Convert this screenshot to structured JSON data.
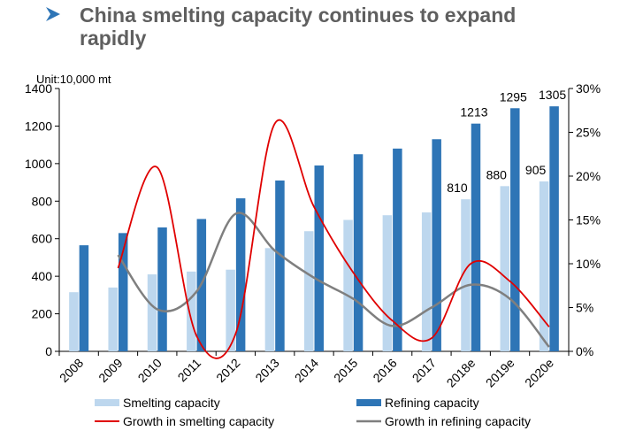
{
  "title": "China smelting capacity continues to expand rapidly",
  "unit_label": "Unit:10,000 mt",
  "colors": {
    "smelting": "#bdd7ee",
    "refining": "#2e75b6",
    "growth_smelting": "#e00000",
    "growth_refining": "#7f7f7f",
    "title": "#5f5f5f",
    "bullet": "#2e75b6"
  },
  "chart_data": {
    "type": "bar",
    "categories": [
      "2008",
      "2009",
      "2010",
      "2011",
      "2012",
      "2013",
      "2014",
      "2015",
      "2016",
      "2017",
      "2018e",
      "2019e",
      "2020e"
    ],
    "series": [
      {
        "name": "Smelting capacity",
        "axis": "left",
        "kind": "bar",
        "values": [
          315,
          340,
          410,
          425,
          435,
          550,
          640,
          700,
          725,
          740,
          810,
          880,
          905
        ]
      },
      {
        "name": "Refining capacity",
        "axis": "left",
        "kind": "bar",
        "values": [
          565,
          630,
          660,
          705,
          815,
          910,
          990,
          1050,
          1080,
          1130,
          1213,
          1295,
          1305
        ]
      },
      {
        "name": "Growth in smelting capacity",
        "axis": "right",
        "kind": "line",
        "values": [
          null,
          9.5,
          21.0,
          1.8,
          2.0,
          26.0,
          16.5,
          9.0,
          3.5,
          1.5,
          10.0,
          8.0,
          2.8
        ]
      },
      {
        "name": "Growth in refining capacity",
        "axis": "right",
        "kind": "line",
        "values": [
          null,
          11.0,
          4.8,
          6.8,
          15.7,
          11.5,
          8.4,
          6.0,
          2.9,
          5.0,
          7.6,
          6.0,
          0.5
        ]
      }
    ],
    "data_labels": [
      {
        "series": "Smelting capacity",
        "category": "2018e",
        "text": "810"
      },
      {
        "series": "Smelting capacity",
        "category": "2019e",
        "text": "880"
      },
      {
        "series": "Smelting capacity",
        "category": "2020e",
        "text": "905"
      },
      {
        "series": "Refining capacity",
        "category": "2018e",
        "text": "1213"
      },
      {
        "series": "Refining capacity",
        "category": "2019e",
        "text": "1295"
      },
      {
        "series": "Refining capacity",
        "category": "2020e",
        "text": "1305"
      }
    ],
    "y_left": {
      "min": 0,
      "max": 1400,
      "ticks": [
        "0",
        "200",
        "400",
        "600",
        "800",
        "1000",
        "1200",
        "1400"
      ]
    },
    "y_right": {
      "min": 0,
      "max": 30,
      "ticks": [
        "0%",
        "5%",
        "10%",
        "15%",
        "20%",
        "25%",
        "30%"
      ]
    },
    "grid": false,
    "legend_position": "bottom"
  }
}
